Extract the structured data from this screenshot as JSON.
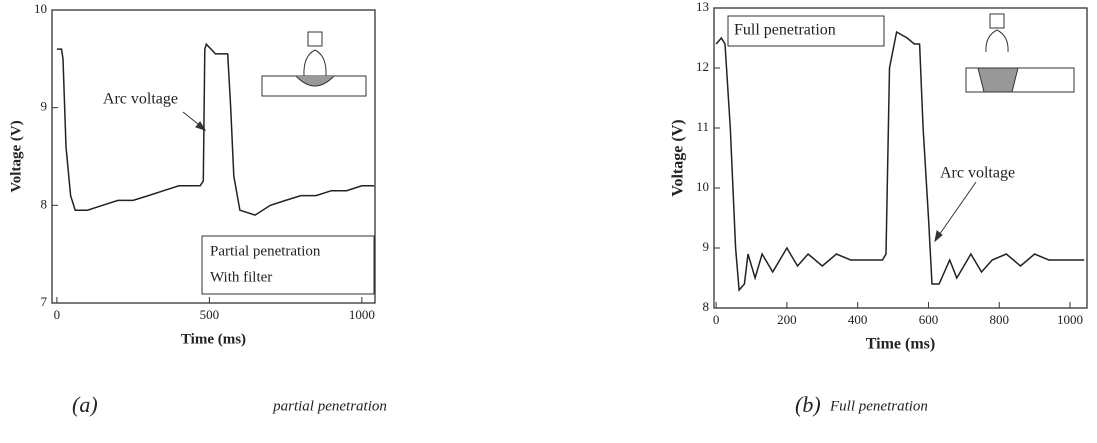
{
  "chart_data": [
    {
      "type": "line",
      "xlabel": "Time (ms)",
      "ylabel": "Voltage (V)",
      "annotations": [
        "Arc voltage"
      ],
      "legend_text": [
        "Partial penetration",
        "With filter"
      ],
      "xlim": [
        -16,
        1043
      ],
      "ylim": [
        7,
        10
      ],
      "xticks": [
        0,
        500,
        1000
      ],
      "yticks": [
        7,
        8,
        9,
        10
      ],
      "color": "#222",
      "x": [
        0,
        15,
        20,
        30,
        45,
        60,
        100,
        150,
        200,
        250,
        300,
        350,
        400,
        470,
        480,
        485,
        490,
        520,
        560,
        570,
        580,
        600,
        650,
        700,
        750,
        800,
        850,
        900,
        950,
        1000,
        1040
      ],
      "values": [
        9.6,
        9.6,
        9.5,
        8.6,
        8.1,
        7.95,
        7.95,
        8.0,
        8.05,
        8.05,
        8.1,
        8.15,
        8.2,
        8.2,
        8.25,
        9.6,
        9.65,
        9.55,
        9.55,
        9.0,
        8.3,
        7.95,
        7.9,
        8.0,
        8.05,
        8.1,
        8.1,
        8.15,
        8.15,
        8.2,
        8.2
      ]
    },
    {
      "type": "line",
      "xlabel": "Time (ms)",
      "ylabel": "Voltage (V)",
      "annotations": [
        "Full penetration",
        "Arc voltage"
      ],
      "xlim": [
        -6,
        1048
      ],
      "ylim": [
        8,
        13
      ],
      "xticks": [
        0,
        200,
        400,
        600,
        800,
        1000
      ],
      "yticks": [
        8,
        9,
        10,
        11,
        12,
        13
      ],
      "color": "#222",
      "x": [
        0,
        15,
        25,
        40,
        55,
        65,
        80,
        90,
        110,
        130,
        160,
        200,
        230,
        260,
        300,
        340,
        380,
        420,
        470,
        480,
        490,
        510,
        540,
        560,
        575,
        585,
        600,
        610,
        630,
        660,
        680,
        720,
        750,
        780,
        820,
        860,
        900,
        940,
        1000,
        1040
      ],
      "values": [
        12.4,
        12.5,
        12.4,
        11,
        9,
        8.3,
        8.4,
        8.9,
        8.5,
        8.9,
        8.6,
        9.0,
        8.7,
        8.9,
        8.7,
        8.9,
        8.8,
        8.8,
        8.8,
        8.9,
        12.0,
        12.6,
        12.5,
        12.4,
        12.4,
        11,
        9.5,
        8.4,
        8.4,
        8.8,
        8.5,
        8.9,
        8.6,
        8.8,
        8.9,
        8.7,
        8.9,
        8.8,
        8.8,
        8.8
      ]
    }
  ],
  "captions": [
    "(a)",
    "partial penetration",
    "(b)",
    "Full penetration"
  ]
}
